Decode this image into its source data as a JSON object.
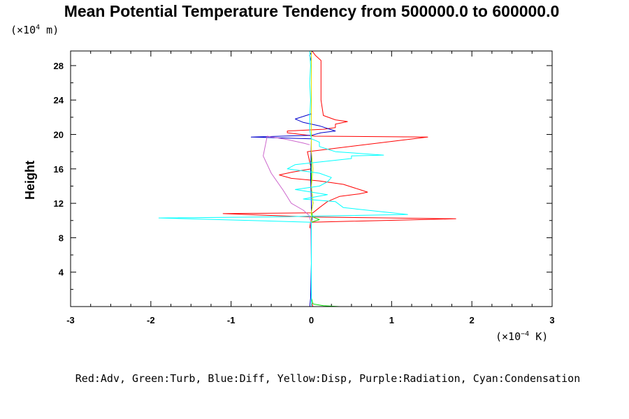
{
  "chart_data": {
    "type": "line",
    "title": "Mean Potential Temperature Tendency from 500000.0 to 600000.0",
    "ylabel": "Height",
    "y_unit": {
      "prefix": "(×10",
      "exp": "4",
      "suffix": " m)"
    },
    "x_unit": {
      "prefix": "(×10",
      "exp": "−4",
      "suffix": " K)"
    },
    "xlim": [
      -3,
      3
    ],
    "ylim": [
      0,
      29.7
    ],
    "x_ticks": [
      -3,
      -2,
      -1,
      0,
      1,
      2,
      3
    ],
    "x_tick_labels": [
      "-3",
      "-2",
      "-1",
      "0",
      "1",
      "2",
      "3"
    ],
    "y_ticks": [
      4,
      8,
      12,
      16,
      20,
      24,
      28
    ],
    "y_tick_labels": [
      "4",
      "8",
      "12",
      "16",
      "20",
      "24",
      "28"
    ],
    "legend_text": "Red:Adv, Green:Turb, Blue:Diff, Yellow:Disp, Purple:Radiation, Cyan:Condensation",
    "series": [
      {
        "name": "Adv",
        "color": "#ff0000",
        "x": [
          0.02,
          0.01,
          0.0,
          0.0,
          0.0,
          0.0,
          0.0,
          0.0,
          -0.02,
          -0.01,
          1.8,
          0.02,
          -1.1,
          0.02,
          0.1,
          0.2,
          0.35,
          0.6,
          0.7,
          0.6,
          0.4,
          0.1,
          -0.25,
          -0.4,
          -0.25,
          0.0,
          -0.05,
          1.45,
          0.05,
          -0.3,
          -0.3,
          0.15,
          0.3,
          0.3,
          0.45,
          0.3,
          0.15,
          0.12,
          0.12,
          0.12,
          0.12,
          0.05,
          0.01
        ],
        "y": [
          0.0,
          0.2,
          0.5,
          1,
          3,
          5,
          7,
          9,
          9.2,
          9.8,
          10.2,
          10.4,
          10.8,
          10.9,
          11.5,
          12.2,
          12.8,
          13.1,
          13.3,
          13.6,
          14.2,
          14.6,
          14.9,
          15.3,
          15.6,
          16,
          18,
          19.7,
          19.8,
          20.2,
          20.4,
          20.6,
          20.8,
          21.2,
          21.5,
          21.7,
          22.2,
          24,
          25.5,
          27.5,
          28.6,
          29.2,
          29.7
        ]
      },
      {
        "name": "Turb",
        "color": "#00dd00",
        "x": [
          0.35,
          0.15,
          0.02,
          0.0,
          0.0,
          0.0,
          0.0,
          0.0,
          0.1,
          0.02,
          0.0,
          0.02,
          0.0,
          0.0,
          0.0,
          0.0,
          0.0
        ],
        "y": [
          0.0,
          0.1,
          0.3,
          1,
          5,
          9,
          9.5,
          9.8,
          10.1,
          10.4,
          11,
          12,
          14,
          17,
          20,
          25,
          29.7
        ]
      },
      {
        "name": "Diff",
        "color": "#0000cc",
        "x": [
          -0.02,
          -0.01,
          0.0,
          0.0,
          -0.01,
          0.01,
          0.0,
          0.0,
          -0.01,
          0.0,
          -0.75,
          0.0,
          0.12,
          0.3,
          0.1,
          -0.1,
          -0.2,
          0.0,
          0.0,
          0.0,
          -0.02,
          0.01
        ],
        "y": [
          0.0,
          1,
          5,
          9,
          9.5,
          10.2,
          10.5,
          12,
          15,
          19.5,
          19.7,
          19.9,
          20.2,
          20.4,
          21.0,
          21.4,
          21.8,
          22.4,
          25,
          28.5,
          29.2,
          29.7
        ]
      },
      {
        "name": "Disp",
        "color": "#dddd00",
        "x": [
          0.0,
          0.0,
          0.0,
          0.02,
          0.0,
          0.02,
          0.0,
          0.0
        ],
        "y": [
          0.0,
          8,
          11,
          12,
          14,
          16,
          18,
          29.7
        ]
      },
      {
        "name": "Radiation",
        "color": "#cc66cc",
        "x": [
          0.0,
          0.0,
          -0.01,
          -0.03,
          -0.1,
          -0.25,
          -0.35,
          -0.5,
          -0.6,
          -0.55,
          -0.3,
          -0.1,
          -0.02
        ],
        "y": [
          0.0,
          5,
          10,
          10.6,
          11.2,
          12,
          13.5,
          15.5,
          17.5,
          19.8,
          19.4,
          19.0,
          18.8
        ]
      },
      {
        "name": "Condensation",
        "color": "#00ffff",
        "x": [
          0.0,
          0.0,
          0.0,
          0.0,
          -1.9,
          -0.6,
          0.0,
          1.2,
          0.4,
          0.3,
          -0.1,
          0.2,
          -0.2,
          0.1,
          0.2,
          0.25,
          0.1,
          -0.3,
          -0.2,
          0.3,
          0.5,
          0.5,
          0.9,
          0.3,
          0.1,
          0.1,
          0.0,
          -0.02,
          -0.02,
          -0.01,
          -0.02,
          -0.01,
          -0.02
        ],
        "y": [
          0.0,
          3,
          8,
          9.8,
          10.3,
          10.4,
          10.5,
          10.7,
          11.5,
          12.2,
          12.5,
          13.0,
          13.6,
          14.0,
          14.5,
          15.0,
          15.5,
          16.0,
          16.5,
          17.0,
          17.2,
          17.5,
          17.6,
          18.0,
          18.6,
          19.1,
          19.5,
          20.5,
          22,
          24,
          26,
          28,
          29.7
        ]
      }
    ]
  }
}
